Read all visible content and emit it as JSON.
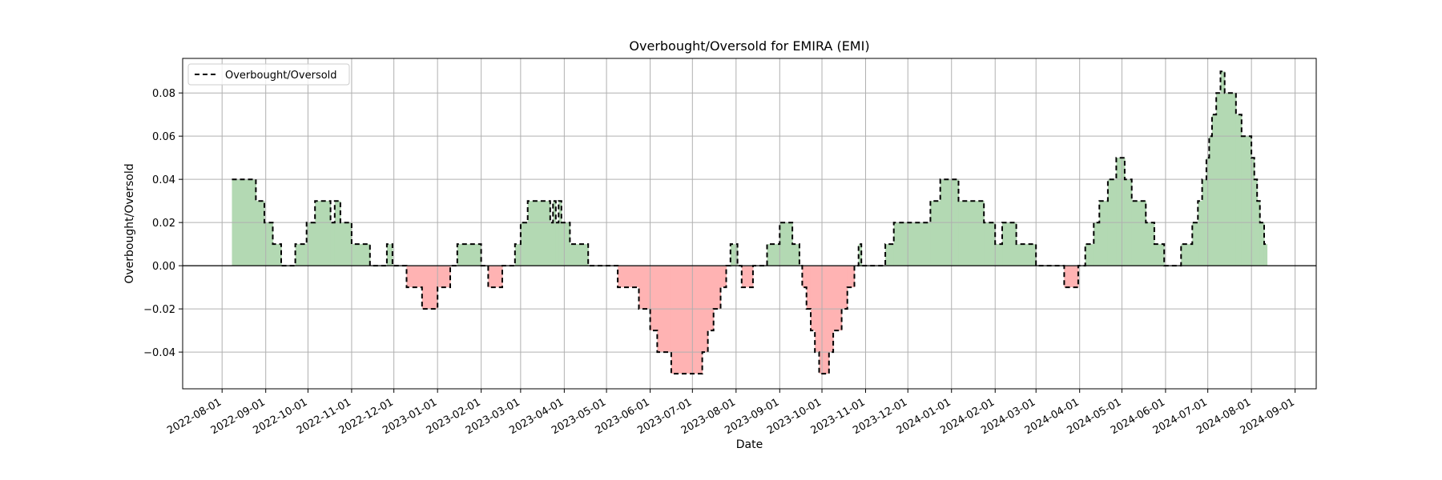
{
  "chart_data": {
    "type": "area",
    "title": "Overbought/Oversold for EMIRA (EMI)",
    "xlabel": "Date",
    "ylabel": "Overbought/Oversold",
    "xlim": [
      "2022-07-04",
      "2024-09-16"
    ],
    "ylim": [
      -0.057,
      0.096
    ],
    "grid": true,
    "legend": {
      "position": "upper-left",
      "entries": [
        "Overbought/Oversold"
      ]
    },
    "x_ticks": [
      "2022-08-01",
      "2022-09-01",
      "2022-10-01",
      "2022-11-01",
      "2022-12-01",
      "2023-01-01",
      "2023-02-01",
      "2023-03-01",
      "2023-04-01",
      "2023-05-01",
      "2023-06-01",
      "2023-07-01",
      "2023-08-01",
      "2023-09-01",
      "2023-10-01",
      "2023-11-01",
      "2023-12-01",
      "2024-01-01",
      "2024-02-01",
      "2024-03-01",
      "2024-04-01",
      "2024-05-01",
      "2024-06-01",
      "2024-07-01",
      "2024-08-01",
      "2024-09-01"
    ],
    "y_ticks": [
      -0.04,
      -0.02,
      0.0,
      0.02,
      0.04,
      0.06,
      0.08
    ],
    "y_tick_labels": [
      "−0.04",
      "−0.02",
      "0.00",
      "0.02",
      "0.04",
      "0.06",
      "0.08"
    ],
    "colors": {
      "line": "#000000",
      "positive_fill": "#b3d9b3",
      "negative_fill": "#ffb3b3",
      "grid": "#b0b0b0",
      "zero_line": "#000000"
    },
    "series": [
      {
        "name": "Overbought/Oversold",
        "points": [
          [
            "2022-08-08",
            0.04
          ],
          [
            "2022-08-25",
            0.03
          ],
          [
            "2022-08-31",
            0.02
          ],
          [
            "2022-09-06",
            0.01
          ],
          [
            "2022-09-12",
            0.0
          ],
          [
            "2022-09-22",
            0.01
          ],
          [
            "2022-09-30",
            0.02
          ],
          [
            "2022-10-06",
            0.03
          ],
          [
            "2022-10-17",
            0.02
          ],
          [
            "2022-10-20",
            0.03
          ],
          [
            "2022-10-24",
            0.02
          ],
          [
            "2022-11-01",
            0.01
          ],
          [
            "2022-11-14",
            0.0
          ],
          [
            "2022-11-26",
            0.01
          ],
          [
            "2022-11-30",
            0.0
          ],
          [
            "2022-12-10",
            -0.01
          ],
          [
            "2022-12-21",
            -0.02
          ],
          [
            "2023-01-01",
            -0.01
          ],
          [
            "2023-01-10",
            0.0
          ],
          [
            "2023-01-15",
            0.01
          ],
          [
            "2023-02-01",
            0.0
          ],
          [
            "2023-02-06",
            -0.01
          ],
          [
            "2023-02-16",
            0.0
          ],
          [
            "2023-02-25",
            0.01
          ],
          [
            "2023-03-01",
            0.02
          ],
          [
            "2023-03-06",
            0.03
          ],
          [
            "2023-03-22",
            0.02
          ],
          [
            "2023-03-24",
            0.03
          ],
          [
            "2023-03-26",
            0.02
          ],
          [
            "2023-03-28",
            0.03
          ],
          [
            "2023-03-30",
            0.02
          ],
          [
            "2023-04-05",
            0.01
          ],
          [
            "2023-04-18",
            0.0
          ],
          [
            "2023-05-09",
            -0.01
          ],
          [
            "2023-05-24",
            -0.02
          ],
          [
            "2023-06-01",
            -0.03
          ],
          [
            "2023-06-06",
            -0.04
          ],
          [
            "2023-06-16",
            -0.05
          ],
          [
            "2023-07-08",
            -0.04
          ],
          [
            "2023-07-12",
            -0.03
          ],
          [
            "2023-07-16",
            -0.02
          ],
          [
            "2023-07-21",
            -0.01
          ],
          [
            "2023-07-25",
            0.0
          ],
          [
            "2023-07-28",
            0.01
          ],
          [
            "2023-08-02",
            0.0
          ],
          [
            "2023-08-05",
            -0.01
          ],
          [
            "2023-08-13",
            0.0
          ],
          [
            "2023-08-23",
            0.01
          ],
          [
            "2023-09-01",
            0.02
          ],
          [
            "2023-09-10",
            0.01
          ],
          [
            "2023-09-15",
            0.0
          ],
          [
            "2023-09-17",
            -0.01
          ],
          [
            "2023-09-20",
            -0.02
          ],
          [
            "2023-09-23",
            -0.03
          ],
          [
            "2023-09-26",
            -0.04
          ],
          [
            "2023-09-29",
            -0.05
          ],
          [
            "2023-10-06",
            -0.04
          ],
          [
            "2023-10-09",
            -0.03
          ],
          [
            "2023-10-15",
            -0.02
          ],
          [
            "2023-10-19",
            -0.01
          ],
          [
            "2023-10-24",
            0.0
          ],
          [
            "2023-10-27",
            0.01
          ],
          [
            "2023-10-29",
            0.0
          ],
          [
            "2023-11-15",
            0.01
          ],
          [
            "2023-11-21",
            0.02
          ],
          [
            "2023-12-17",
            0.03
          ],
          [
            "2023-12-24",
            0.04
          ],
          [
            "2024-01-06",
            0.03
          ],
          [
            "2024-01-24",
            0.02
          ],
          [
            "2024-02-01",
            0.01
          ],
          [
            "2024-02-06",
            0.02
          ],
          [
            "2024-02-16",
            0.01
          ],
          [
            "2024-03-01",
            0.0
          ],
          [
            "2024-03-21",
            -0.01
          ],
          [
            "2024-03-31",
            0.0
          ],
          [
            "2024-04-05",
            0.01
          ],
          [
            "2024-04-11",
            0.02
          ],
          [
            "2024-04-15",
            0.03
          ],
          [
            "2024-04-21",
            0.04
          ],
          [
            "2024-04-27",
            0.05
          ],
          [
            "2024-05-03",
            0.04
          ],
          [
            "2024-05-08",
            0.03
          ],
          [
            "2024-05-18",
            0.02
          ],
          [
            "2024-05-24",
            0.01
          ],
          [
            "2024-05-31",
            0.0
          ],
          [
            "2024-06-12",
            0.01
          ],
          [
            "2024-06-20",
            0.02
          ],
          [
            "2024-06-24",
            0.03
          ],
          [
            "2024-06-27",
            0.04
          ],
          [
            "2024-06-30",
            0.05
          ],
          [
            "2024-07-02",
            0.06
          ],
          [
            "2024-07-04",
            0.07
          ],
          [
            "2024-07-07",
            0.08
          ],
          [
            "2024-07-10",
            0.09
          ],
          [
            "2024-07-13",
            0.08
          ],
          [
            "2024-07-21",
            0.07
          ],
          [
            "2024-07-25",
            0.06
          ],
          [
            "2024-08-01",
            0.05
          ],
          [
            "2024-08-03",
            0.04
          ],
          [
            "2024-08-05",
            0.03
          ],
          [
            "2024-08-07",
            0.02
          ],
          [
            "2024-08-10",
            0.01
          ],
          [
            "2024-08-12",
            0.01
          ]
        ]
      }
    ]
  }
}
